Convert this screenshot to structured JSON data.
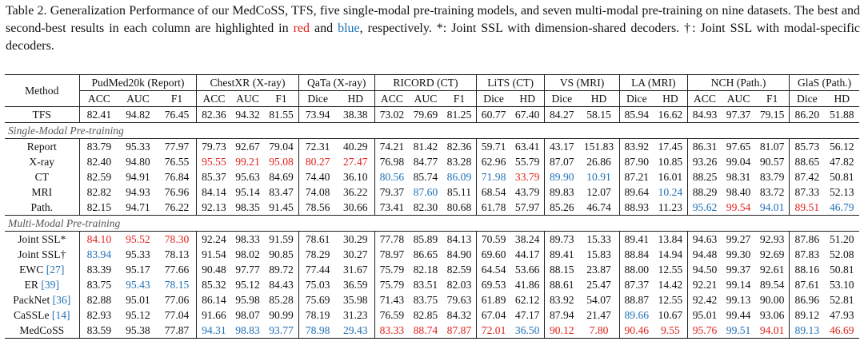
{
  "caption": {
    "prefix": "Table 2. Generalization Performance of our MedCoSS, TFS, five single-modal pre-training models, and seven multi-modal pre-training on nine datasets. The best and second-best results in each column are highlighted in ",
    "red_word": "red",
    "and_word": " and ",
    "blue_word": "blue",
    "suffix": ", respectively. *: Joint SSL with dimension-shared decoders. †: Joint SSL with modal-specific decoders.",
    "colors": {
      "red": "#e0201b",
      "blue": "#1f6fb5"
    }
  },
  "table": {
    "method_header": "Method",
    "groups": [
      {
        "label": "PudMed20k (Report)",
        "cols": [
          "ACC",
          "AUC",
          "F1"
        ]
      },
      {
        "label": "ChestXR (X-ray)",
        "cols": [
          "ACC",
          "AUC",
          "F1"
        ]
      },
      {
        "label": "QaTa (X-ray)",
        "cols": [
          "Dice",
          "HD"
        ]
      },
      {
        "label": "RICORD (CT)",
        "cols": [
          "ACC",
          "AUC",
          "F1"
        ]
      },
      {
        "label": "LiTS (CT)",
        "cols": [
          "Dice",
          "HD"
        ]
      },
      {
        "label": "VS (MRI)",
        "cols": [
          "Dice",
          "HD"
        ]
      },
      {
        "label": "LA (MRI)",
        "cols": [
          "Dice",
          "HD"
        ]
      },
      {
        "label": "NCH (Path.)",
        "cols": [
          "ACC",
          "AUC",
          "F1"
        ]
      },
      {
        "label": "GlaS (Path.)",
        "cols": [
          "Dice",
          "HD"
        ]
      }
    ],
    "sections": [
      {
        "title": "",
        "rows": [
          {
            "method": "TFS",
            "values": [
              "82.41",
              "94.82",
              "76.45",
              "82.36",
              "94.32",
              "81.55",
              "73.94",
              "38.38",
              "73.02",
              "79.69",
              "81.25",
              "60.77",
              "67.40",
              "84.27",
              "58.15",
              "85.94",
              "16.62",
              "84.93",
              "97.37",
              "79.15",
              "86.20",
              "51.88"
            ],
            "marks": []
          }
        ]
      },
      {
        "title": "Single-Modal Pre-training",
        "rows": [
          {
            "method": "Report",
            "values": [
              "83.79",
              "95.33",
              "77.97",
              "79.73",
              "92.67",
              "79.04",
              "72.31",
              "40.29",
              "74.21",
              "81.42",
              "82.36",
              "59.71",
              "63.41",
              "43.17",
              "151.83",
              "83.92",
              "17.45",
              "86.31",
              "97.65",
              "81.07",
              "85.73",
              "56.12"
            ],
            "marks": []
          },
          {
            "method": "X-ray",
            "values": [
              "82.40",
              "94.80",
              "76.55",
              "95.55",
              "99.21",
              "95.08",
              "80.27",
              "27.47",
              "76.98",
              "84.77",
              "83.28",
              "62.96",
              "55.79",
              "87.07",
              "26.86",
              "87.90",
              "10.85",
              "93.26",
              "99.04",
              "90.57",
              "88.65",
              "47.82"
            ],
            "marks": [
              "",
              "",
              "",
              "r",
              "r",
              "r",
              "r",
              "r",
              "",
              "",
              "",
              "",
              "",
              "",
              "",
              "",
              "",
              "",
              "",
              "",
              "",
              ""
            ]
          },
          {
            "method": "CT",
            "values": [
              "82.59",
              "94.91",
              "76.84",
              "85.37",
              "95.63",
              "84.69",
              "74.40",
              "36.10",
              "80.56",
              "85.74",
              "86.09",
              "71.98",
              "33.79",
              "89.90",
              "10.91",
              "87.21",
              "16.01",
              "88.25",
              "98.31",
              "83.79",
              "87.42",
              "50.81"
            ],
            "marks": [
              "",
              "",
              "",
              "",
              "",
              "",
              "",
              "",
              "b",
              "",
              "b",
              "b",
              "r",
              "b",
              "b",
              "",
              "",
              "",
              "",
              "",
              "",
              ""
            ]
          },
          {
            "method": "MRI",
            "values": [
              "82.82",
              "94.93",
              "76.96",
              "84.14",
              "95.14",
              "83.47",
              "74.08",
              "36.22",
              "79.37",
              "87.60",
              "85.11",
              "68.54",
              "43.79",
              "89.83",
              "12.07",
              "89.64",
              "10.24",
              "88.29",
              "98.40",
              "83.72",
              "87.33",
              "52.13"
            ],
            "marks": [
              "",
              "",
              "",
              "",
              "",
              "",
              "",
              "",
              "",
              "b",
              "",
              "",
              "",
              "",
              "",
              "",
              "b",
              "",
              "",
              "",
              "",
              ""
            ]
          },
          {
            "method": "Path.",
            "values": [
              "82.15",
              "94.71",
              "76.22",
              "92.13",
              "98.35",
              "91.45",
              "78.56",
              "30.66",
              "73.41",
              "82.30",
              "80.68",
              "61.78",
              "57.97",
              "85.26",
              "46.74",
              "88.93",
              "11.23",
              "95.62",
              "99.54",
              "94.01",
              "89.51",
              "46.79"
            ],
            "marks": [
              "",
              "",
              "",
              "",
              "",
              "",
              "",
              "",
              "",
              "",
              "",
              "",
              "",
              "",
              "",
              "",
              "",
              "b",
              "r",
              "b",
              "r",
              "b"
            ]
          }
        ]
      },
      {
        "title": "Multi-Modal Pre-training",
        "rows": [
          {
            "method": "Joint SSL*",
            "ref": "",
            "values": [
              "84.10",
              "95.52",
              "78.30",
              "92.24",
              "98.33",
              "91.59",
              "78.61",
              "30.29",
              "77.78",
              "85.89",
              "84.13",
              "70.59",
              "38.24",
              "89.73",
              "15.33",
              "89.41",
              "13.84",
              "94.63",
              "99.27",
              "92.93",
              "87.86",
              "51.20"
            ],
            "marks": [
              "r",
              "r",
              "r",
              "",
              "",
              "",
              "",
              "",
              "",
              "",
              "",
              "",
              "",
              "",
              "",
              "",
              "",
              "",
              "",
              "",
              "",
              ""
            ]
          },
          {
            "method": "Joint SSL†",
            "ref": "",
            "values": [
              "83.94",
              "95.33",
              "78.13",
              "91.54",
              "98.02",
              "90.85",
              "78.29",
              "30.27",
              "78.97",
              "86.65",
              "84.90",
              "69.60",
              "44.17",
              "89.41",
              "15.83",
              "88.84",
              "14.94",
              "94.48",
              "99.30",
              "92.69",
              "87.83",
              "52.08"
            ],
            "marks": [
              "b",
              "",
              "",
              "",
              "",
              "",
              "",
              "",
              "",
              "",
              "",
              "",
              "",
              "",
              "",
              "",
              "",
              "",
              "",
              "",
              "",
              ""
            ]
          },
          {
            "method": "EWC ",
            "ref": "[27]",
            "values": [
              "83.39",
              "95.17",
              "77.66",
              "90.48",
              "97.77",
              "89.72",
              "77.44",
              "31.67",
              "75.79",
              "82.18",
              "82.59",
              "64.54",
              "53.66",
              "88.15",
              "23.87",
              "88.00",
              "12.55",
              "94.50",
              "99.37",
              "92.61",
              "88.16",
              "50.81"
            ],
            "marks": []
          },
          {
            "method": "ER ",
            "ref": "[39]",
            "values": [
              "83.75",
              "95.43",
              "78.15",
              "85.32",
              "95.12",
              "84.43",
              "75.03",
              "36.59",
              "75.79",
              "83.51",
              "82.03",
              "69.53",
              "41.86",
              "88.61",
              "25.47",
              "87.37",
              "14.42",
              "92.21",
              "99.14",
              "89.54",
              "87.61",
              "53.10"
            ],
            "marks": [
              "",
              "b",
              "b",
              "",
              "",
              "",
              "",
              "",
              "",
              "",
              "",
              "",
              "",
              "",
              "",
              "",
              "",
              "",
              "",
              "",
              "",
              ""
            ]
          },
          {
            "method": "PackNet ",
            "ref": "[36]",
            "values": [
              "82.88",
              "95.01",
              "77.06",
              "86.14",
              "95.98",
              "85.28",
              "75.69",
              "35.98",
              "71.43",
              "83.75",
              "79.63",
              "61.89",
              "62.12",
              "83.92",
              "54.07",
              "88.87",
              "12.55",
              "92.42",
              "99.13",
              "90.00",
              "86.96",
              "52.81"
            ],
            "marks": []
          },
          {
            "method": "CaSSLe ",
            "ref": "[14]",
            "values": [
              "82.93",
              "95.12",
              "77.04",
              "91.66",
              "98.07",
              "90.99",
              "78.19",
              "31.23",
              "76.59",
              "82.85",
              "84.32",
              "67.04",
              "47.17",
              "87.94",
              "21.47",
              "89.66",
              "10.67",
              "95.01",
              "99.44",
              "93.06",
              "89.12",
              "47.93"
            ],
            "marks": [
              "",
              "",
              "",
              "",
              "",
              "",
              "",
              "",
              "",
              "",
              "",
              "",
              "",
              "",
              "",
              "b",
              "",
              "",
              "",
              "",
              "",
              ""
            ]
          },
          {
            "method": "MedCoSS",
            "ref": "",
            "values": [
              "83.59",
              "95.38",
              "77.87",
              "94.31",
              "98.83",
              "93.77",
              "78.98",
              "29.43",
              "83.33",
              "88.74",
              "87.87",
              "72.01",
              "36.50",
              "90.12",
              "7.80",
              "90.46",
              "9.55",
              "95.76",
              "99.51",
              "94.01",
              "89.13",
              "46.69"
            ],
            "marks": [
              "",
              "",
              "",
              "b",
              "b",
              "b",
              "b",
              "b",
              "r",
              "r",
              "r",
              "r",
              "b",
              "r",
              "r",
              "r",
              "r",
              "r",
              "b",
              "r",
              "b",
              "r"
            ]
          }
        ]
      }
    ]
  }
}
